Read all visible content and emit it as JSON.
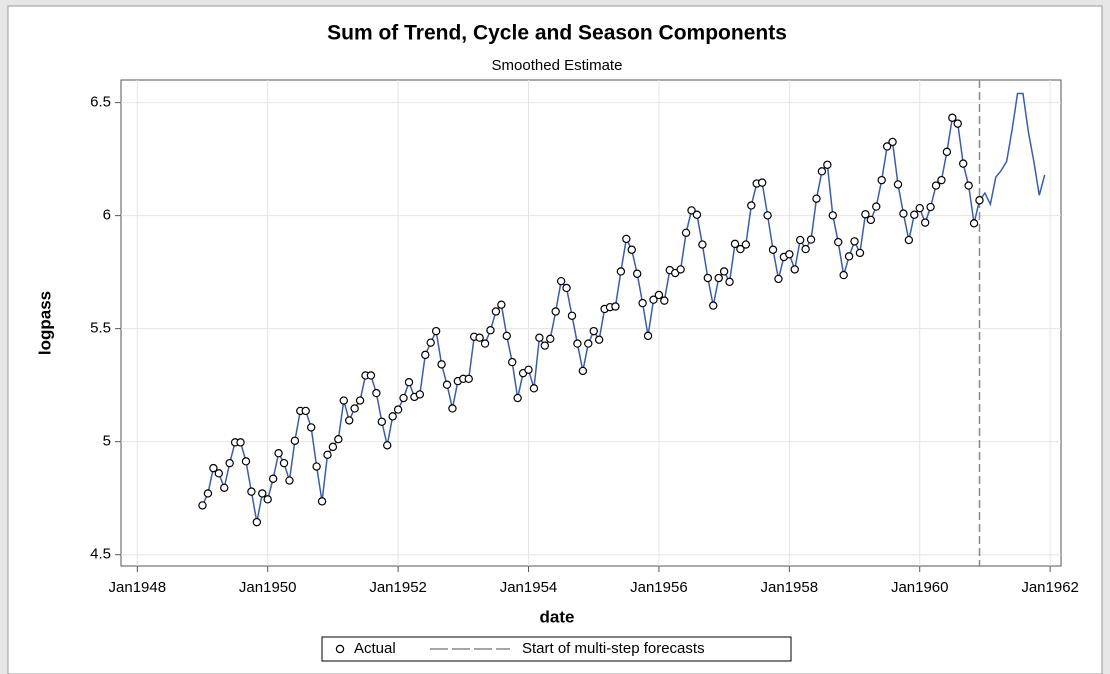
{
  "chart_data": {
    "type": "line",
    "title": "Sum of Trend, Cycle and Season Components",
    "subtitle": "Smoothed Estimate",
    "x_label": "date",
    "y_label": "logpass",
    "x": [
      "1949-01",
      "1949-02",
      "1949-03",
      "1949-04",
      "1949-05",
      "1949-06",
      "1949-07",
      "1949-08",
      "1949-09",
      "1949-10",
      "1949-11",
      "1949-12",
      "1950-01",
      "1950-02",
      "1950-03",
      "1950-04",
      "1950-05",
      "1950-06",
      "1950-07",
      "1950-08",
      "1950-09",
      "1950-10",
      "1950-11",
      "1950-12",
      "1951-01",
      "1951-02",
      "1951-03",
      "1951-04",
      "1951-05",
      "1951-06",
      "1951-07",
      "1951-08",
      "1951-09",
      "1951-10",
      "1951-11",
      "1951-12",
      "1952-01",
      "1952-02",
      "1952-03",
      "1952-04",
      "1952-05",
      "1952-06",
      "1952-07",
      "1952-08",
      "1952-09",
      "1952-10",
      "1952-11",
      "1952-12",
      "1953-01",
      "1953-02",
      "1953-03",
      "1953-04",
      "1953-05",
      "1953-06",
      "1953-07",
      "1953-08",
      "1953-09",
      "1953-10",
      "1953-11",
      "1953-12",
      "1954-01",
      "1954-02",
      "1954-03",
      "1954-04",
      "1954-05",
      "1954-06",
      "1954-07",
      "1954-08",
      "1954-09",
      "1954-10",
      "1954-11",
      "1954-12",
      "1955-01",
      "1955-02",
      "1955-03",
      "1955-04",
      "1955-05",
      "1955-06",
      "1955-07",
      "1955-08",
      "1955-09",
      "1955-10",
      "1955-11",
      "1955-12",
      "1956-01",
      "1956-02",
      "1956-03",
      "1956-04",
      "1956-05",
      "1956-06",
      "1956-07",
      "1956-08",
      "1956-09",
      "1956-10",
      "1956-11",
      "1956-12",
      "1957-01",
      "1957-02",
      "1957-03",
      "1957-04",
      "1957-05",
      "1957-06",
      "1957-07",
      "1957-08",
      "1957-09",
      "1957-10",
      "1957-11",
      "1957-12",
      "1958-01",
      "1958-02",
      "1958-03",
      "1958-04",
      "1958-05",
      "1958-06",
      "1958-07",
      "1958-08",
      "1958-09",
      "1958-10",
      "1958-11",
      "1958-12",
      "1959-01",
      "1959-02",
      "1959-03",
      "1959-04",
      "1959-05",
      "1959-06",
      "1959-07",
      "1959-08",
      "1959-09",
      "1959-10",
      "1959-11",
      "1959-12",
      "1960-01",
      "1960-02",
      "1960-03",
      "1960-04",
      "1960-05",
      "1960-06",
      "1960-07",
      "1960-08",
      "1960-09",
      "1960-10",
      "1960-11",
      "1960-12",
      "1961-01",
      "1961-02",
      "1961-03",
      "1961-04",
      "1961-05",
      "1961-06",
      "1961-07",
      "1961-08",
      "1961-09",
      "1961-10",
      "1961-11",
      "1961-12"
    ],
    "series": [
      {
        "name": "Actual",
        "marker": "circle",
        "color": "#000000",
        "values": [
          4.718,
          4.771,
          4.883,
          4.86,
          4.796,
          4.905,
          4.997,
          4.997,
          4.913,
          4.779,
          4.644,
          4.771,
          4.745,
          4.836,
          4.949,
          4.905,
          4.828,
          5.004,
          5.136,
          5.136,
          5.063,
          4.89,
          4.736,
          4.942,
          4.977,
          5.011,
          5.182,
          5.094,
          5.147,
          5.182,
          5.293,
          5.293,
          5.215,
          5.088,
          4.984,
          5.112,
          5.142,
          5.193,
          5.263,
          5.198,
          5.209,
          5.384,
          5.438,
          5.489,
          5.342,
          5.252,
          5.147,
          5.268,
          5.278,
          5.278,
          5.464,
          5.46,
          5.434,
          5.493,
          5.576,
          5.606,
          5.468,
          5.352,
          5.193,
          5.303,
          5.318,
          5.236,
          5.46,
          5.425,
          5.455,
          5.576,
          5.71,
          5.68,
          5.557,
          5.434,
          5.313,
          5.434,
          5.489,
          5.451,
          5.587,
          5.595,
          5.598,
          5.753,
          5.897,
          5.849,
          5.743,
          5.613,
          5.468,
          5.628,
          5.649,
          5.624,
          5.759,
          5.746,
          5.762,
          5.924,
          6.023,
          6.004,
          5.872,
          5.724,
          5.602,
          5.724,
          5.753,
          5.707,
          5.875,
          5.852,
          5.872,
          6.045,
          6.142,
          6.146,
          6.001,
          5.849,
          5.72,
          5.817,
          5.829,
          5.762,
          5.892,
          5.852,
          5.894,
          6.075,
          6.196,
          6.225,
          6.001,
          5.883,
          5.737,
          5.82,
          5.886,
          5.835,
          6.006,
          5.981,
          6.04,
          6.157,
          6.306,
          6.326,
          6.138,
          6.009,
          5.892,
          6.004,
          6.033,
          5.969,
          6.038,
          6.133,
          6.157,
          6.282,
          6.433,
          6.407,
          6.23,
          6.133,
          5.966,
          6.068,
          null,
          null,
          null,
          null,
          null,
          null,
          null,
          null,
          null,
          null,
          null,
          null
        ]
      }
    ],
    "estimate": {
      "color": "#3a5ea6",
      "values": [
        4.718,
        4.771,
        4.883,
        4.86,
        4.796,
        4.905,
        4.997,
        4.997,
        4.913,
        4.779,
        4.644,
        4.771,
        4.745,
        4.836,
        4.949,
        4.905,
        4.828,
        5.004,
        5.136,
        5.136,
        5.063,
        4.89,
        4.736,
        4.942,
        4.977,
        5.011,
        5.182,
        5.094,
        5.147,
        5.182,
        5.293,
        5.293,
        5.215,
        5.088,
        4.984,
        5.112,
        5.142,
        5.193,
        5.263,
        5.198,
        5.209,
        5.384,
        5.438,
        5.489,
        5.342,
        5.252,
        5.147,
        5.268,
        5.278,
        5.278,
        5.464,
        5.46,
        5.434,
        5.493,
        5.576,
        5.606,
        5.468,
        5.352,
        5.193,
        5.303,
        5.318,
        5.236,
        5.46,
        5.425,
        5.455,
        5.576,
        5.71,
        5.68,
        5.557,
        5.434,
        5.313,
        5.434,
        5.489,
        5.451,
        5.587,
        5.595,
        5.598,
        5.753,
        5.897,
        5.849,
        5.743,
        5.613,
        5.468,
        5.628,
        5.649,
        5.624,
        5.759,
        5.746,
        5.762,
        5.924,
        6.023,
        6.004,
        5.872,
        5.724,
        5.602,
        5.724,
        5.753,
        5.707,
        5.875,
        5.852,
        5.872,
        6.045,
        6.142,
        6.146,
        6.001,
        5.849,
        5.72,
        5.817,
        5.829,
        5.762,
        5.892,
        5.852,
        5.894,
        6.075,
        6.196,
        6.225,
        6.001,
        5.883,
        5.737,
        5.82,
        5.886,
        5.835,
        6.006,
        5.981,
        6.04,
        6.157,
        6.306,
        6.326,
        6.138,
        6.009,
        5.892,
        6.004,
        6.033,
        5.969,
        6.038,
        6.133,
        6.157,
        6.282,
        6.433,
        6.407,
        6.23,
        6.133,
        5.966,
        6.068,
        6.1,
        6.05,
        6.17,
        6.2,
        6.24,
        6.38,
        6.54,
        6.54,
        6.37,
        6.24,
        6.09,
        6.18
      ]
    },
    "reference_line": {
      "x": "1960-12",
      "label": "Start of multi-step forecasts",
      "color": "#888888"
    },
    "xlim": [
      "1947-10",
      "1962-03"
    ],
    "xticks": [
      {
        "value": "1948-01",
        "label": "Jan1948"
      },
      {
        "value": "1950-01",
        "label": "Jan1950"
      },
      {
        "value": "1952-01",
        "label": "Jan1952"
      },
      {
        "value": "1954-01",
        "label": "Jan1954"
      },
      {
        "value": "1956-01",
        "label": "Jan1956"
      },
      {
        "value": "1958-01",
        "label": "Jan1958"
      },
      {
        "value": "1960-01",
        "label": "Jan1960"
      },
      {
        "value": "1962-01",
        "label": "Jan1962"
      }
    ],
    "ylim": [
      4.45,
      6.6
    ],
    "yticks": [
      4.5,
      5,
      5.5,
      6,
      6.5
    ],
    "grid": true
  }
}
